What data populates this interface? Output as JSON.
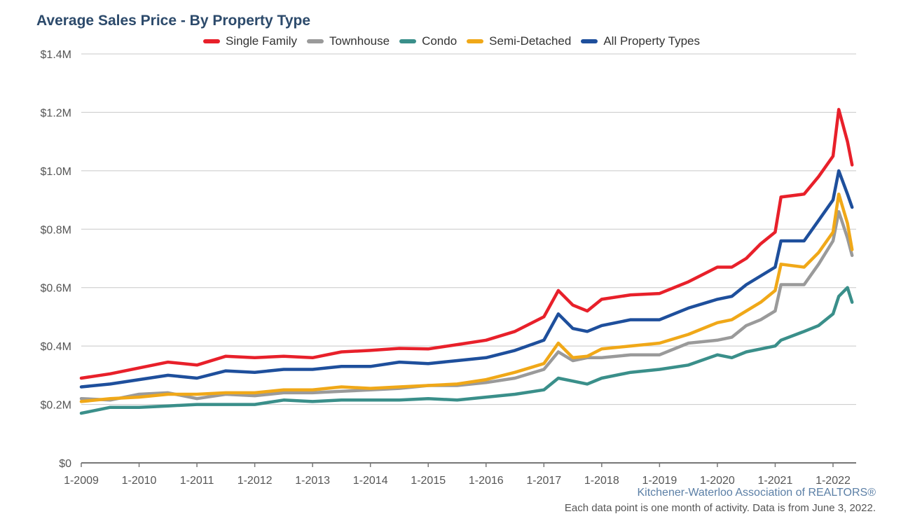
{
  "chart_data": {
    "type": "line",
    "title": "Average Sales Price - By Property Type",
    "xlabel": "",
    "ylabel": "",
    "ylim": [
      0,
      1400000
    ],
    "y_ticks": [
      0,
      200000,
      400000,
      600000,
      800000,
      1000000,
      1200000,
      1400000
    ],
    "y_tick_labels": [
      "$0",
      "$0.2M",
      "$0.4M",
      "$0.6M",
      "$0.8M",
      "$1.0M",
      "$1.2M",
      "$1.4M"
    ],
    "x_tick_labels": [
      "1-2009",
      "1-2010",
      "1-2011",
      "1-2012",
      "1-2013",
      "1-2014",
      "1-2015",
      "1-2016",
      "1-2017",
      "1-2018",
      "1-2019",
      "1-2020",
      "1-2021",
      "1-2022"
    ],
    "grid": true,
    "legend_position": "top",
    "series": [
      {
        "name": "Single Family",
        "color": "#e8202a",
        "points": [
          [
            2009.0,
            290000
          ],
          [
            2009.5,
            305000
          ],
          [
            2010.0,
            325000
          ],
          [
            2010.5,
            345000
          ],
          [
            2011.0,
            335000
          ],
          [
            2011.5,
            365000
          ],
          [
            2012.0,
            360000
          ],
          [
            2012.5,
            365000
          ],
          [
            2013.0,
            360000
          ],
          [
            2013.5,
            380000
          ],
          [
            2014.0,
            385000
          ],
          [
            2014.5,
            392000
          ],
          [
            2015.0,
            390000
          ],
          [
            2015.5,
            405000
          ],
          [
            2016.0,
            420000
          ],
          [
            2016.5,
            450000
          ],
          [
            2017.0,
            500000
          ],
          [
            2017.25,
            590000
          ],
          [
            2017.5,
            540000
          ],
          [
            2017.75,
            520000
          ],
          [
            2018.0,
            560000
          ],
          [
            2018.5,
            575000
          ],
          [
            2019.0,
            580000
          ],
          [
            2019.5,
            620000
          ],
          [
            2020.0,
            670000
          ],
          [
            2020.25,
            670000
          ],
          [
            2020.5,
            700000
          ],
          [
            2020.75,
            750000
          ],
          [
            2021.0,
            790000
          ],
          [
            2021.1,
            910000
          ],
          [
            2021.5,
            920000
          ],
          [
            2021.75,
            980000
          ],
          [
            2022.0,
            1050000
          ],
          [
            2022.1,
            1210000
          ],
          [
            2022.25,
            1100000
          ],
          [
            2022.33,
            1020000
          ]
        ]
      },
      {
        "name": "Townhouse",
        "color": "#9a9a9a",
        "points": [
          [
            2009.0,
            220000
          ],
          [
            2009.5,
            215000
          ],
          [
            2010.0,
            235000
          ],
          [
            2010.5,
            240000
          ],
          [
            2011.0,
            220000
          ],
          [
            2011.5,
            235000
          ],
          [
            2012.0,
            230000
          ],
          [
            2012.5,
            240000
          ],
          [
            2013.0,
            240000
          ],
          [
            2013.5,
            245000
          ],
          [
            2014.0,
            250000
          ],
          [
            2014.5,
            255000
          ],
          [
            2015.0,
            265000
          ],
          [
            2015.5,
            265000
          ],
          [
            2016.0,
            275000
          ],
          [
            2016.5,
            290000
          ],
          [
            2017.0,
            320000
          ],
          [
            2017.25,
            380000
          ],
          [
            2017.5,
            350000
          ],
          [
            2017.75,
            360000
          ],
          [
            2018.0,
            360000
          ],
          [
            2018.5,
            370000
          ],
          [
            2019.0,
            370000
          ],
          [
            2019.5,
            410000
          ],
          [
            2020.0,
            420000
          ],
          [
            2020.25,
            430000
          ],
          [
            2020.5,
            470000
          ],
          [
            2020.75,
            490000
          ],
          [
            2021.0,
            520000
          ],
          [
            2021.1,
            610000
          ],
          [
            2021.5,
            610000
          ],
          [
            2021.75,
            680000
          ],
          [
            2022.0,
            760000
          ],
          [
            2022.1,
            860000
          ],
          [
            2022.25,
            770000
          ],
          [
            2022.33,
            710000
          ]
        ]
      },
      {
        "name": "Condo",
        "color": "#3a8f8a",
        "points": [
          [
            2009.0,
            170000
          ],
          [
            2009.5,
            190000
          ],
          [
            2010.0,
            190000
          ],
          [
            2010.5,
            195000
          ],
          [
            2011.0,
            200000
          ],
          [
            2011.5,
            200000
          ],
          [
            2012.0,
            200000
          ],
          [
            2012.5,
            215000
          ],
          [
            2013.0,
            210000
          ],
          [
            2013.5,
            215000
          ],
          [
            2014.0,
            215000
          ],
          [
            2014.5,
            215000
          ],
          [
            2015.0,
            220000
          ],
          [
            2015.5,
            215000
          ],
          [
            2016.0,
            225000
          ],
          [
            2016.5,
            235000
          ],
          [
            2017.0,
            250000
          ],
          [
            2017.25,
            290000
          ],
          [
            2017.5,
            280000
          ],
          [
            2017.75,
            270000
          ],
          [
            2018.0,
            290000
          ],
          [
            2018.5,
            310000
          ],
          [
            2019.0,
            320000
          ],
          [
            2019.5,
            335000
          ],
          [
            2020.0,
            370000
          ],
          [
            2020.25,
            360000
          ],
          [
            2020.5,
            380000
          ],
          [
            2020.75,
            390000
          ],
          [
            2021.0,
            400000
          ],
          [
            2021.1,
            420000
          ],
          [
            2021.5,
            450000
          ],
          [
            2021.75,
            470000
          ],
          [
            2022.0,
            510000
          ],
          [
            2022.1,
            570000
          ],
          [
            2022.25,
            600000
          ],
          [
            2022.33,
            550000
          ]
        ]
      },
      {
        "name": "Semi-Detached",
        "color": "#f0a818",
        "points": [
          [
            2009.0,
            210000
          ],
          [
            2009.5,
            220000
          ],
          [
            2010.0,
            225000
          ],
          [
            2010.5,
            235000
          ],
          [
            2011.0,
            235000
          ],
          [
            2011.5,
            240000
          ],
          [
            2012.0,
            240000
          ],
          [
            2012.5,
            250000
          ],
          [
            2013.0,
            250000
          ],
          [
            2013.5,
            260000
          ],
          [
            2014.0,
            255000
          ],
          [
            2014.5,
            260000
          ],
          [
            2015.0,
            265000
          ],
          [
            2015.5,
            270000
          ],
          [
            2016.0,
            285000
          ],
          [
            2016.5,
            310000
          ],
          [
            2017.0,
            340000
          ],
          [
            2017.25,
            410000
          ],
          [
            2017.5,
            360000
          ],
          [
            2017.75,
            365000
          ],
          [
            2018.0,
            390000
          ],
          [
            2018.5,
            400000
          ],
          [
            2019.0,
            410000
          ],
          [
            2019.5,
            440000
          ],
          [
            2020.0,
            480000
          ],
          [
            2020.25,
            490000
          ],
          [
            2020.5,
            520000
          ],
          [
            2020.75,
            550000
          ],
          [
            2021.0,
            590000
          ],
          [
            2021.1,
            680000
          ],
          [
            2021.5,
            670000
          ],
          [
            2021.75,
            720000
          ],
          [
            2022.0,
            790000
          ],
          [
            2022.1,
            920000
          ],
          [
            2022.25,
            820000
          ],
          [
            2022.33,
            730000
          ]
        ]
      },
      {
        "name": "All Property Types",
        "color": "#1e4f9c",
        "points": [
          [
            2009.0,
            260000
          ],
          [
            2009.5,
            270000
          ],
          [
            2010.0,
            285000
          ],
          [
            2010.5,
            300000
          ],
          [
            2011.0,
            290000
          ],
          [
            2011.5,
            315000
          ],
          [
            2012.0,
            310000
          ],
          [
            2012.5,
            320000
          ],
          [
            2013.0,
            320000
          ],
          [
            2013.5,
            330000
          ],
          [
            2014.0,
            330000
          ],
          [
            2014.5,
            345000
          ],
          [
            2015.0,
            340000
          ],
          [
            2015.5,
            350000
          ],
          [
            2016.0,
            360000
          ],
          [
            2016.5,
            385000
          ],
          [
            2017.0,
            420000
          ],
          [
            2017.25,
            510000
          ],
          [
            2017.5,
            460000
          ],
          [
            2017.75,
            450000
          ],
          [
            2018.0,
            470000
          ],
          [
            2018.5,
            490000
          ],
          [
            2019.0,
            490000
          ],
          [
            2019.5,
            530000
          ],
          [
            2020.0,
            560000
          ],
          [
            2020.25,
            570000
          ],
          [
            2020.5,
            610000
          ],
          [
            2020.75,
            640000
          ],
          [
            2021.0,
            670000
          ],
          [
            2021.1,
            760000
          ],
          [
            2021.5,
            760000
          ],
          [
            2021.75,
            830000
          ],
          [
            2022.0,
            900000
          ],
          [
            2022.1,
            1000000
          ],
          [
            2022.25,
            920000
          ],
          [
            2022.33,
            875000
          ]
        ]
      }
    ]
  },
  "footer": {
    "org": "Kitchener-Waterloo Association of REALTORS®",
    "note": "Each data point is one month of activity. Data is from June 3, 2022."
  }
}
